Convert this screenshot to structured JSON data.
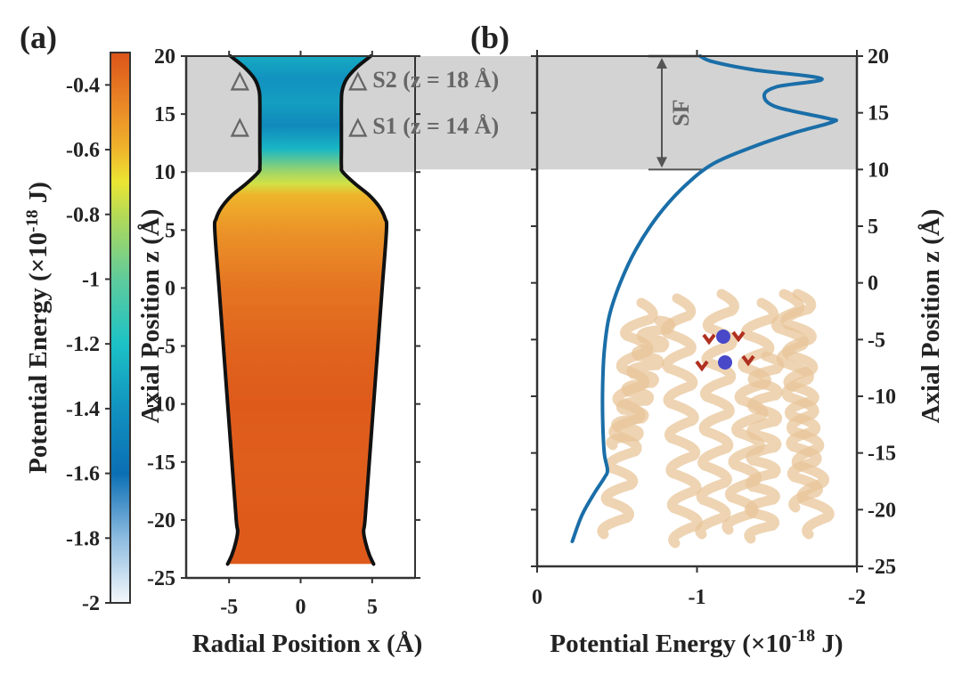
{
  "chart_data": [
    {
      "id": "a",
      "type": "heatmap",
      "panel_label": "(a)",
      "title": "",
      "xlabel": "Radial Position x (Å)",
      "ylabel": "Axial Position z (Å)",
      "xlim": [
        -8,
        8
      ],
      "ylim": [
        -25,
        20
      ],
      "xticks": [
        -5,
        0,
        5
      ],
      "xtick_labels": [
        "-5",
        "0",
        "5"
      ],
      "yticks": [
        20,
        15,
        10,
        5,
        0,
        -5,
        -10,
        -15,
        -20,
        -25
      ],
      "ytick_labels": [
        "20",
        "15",
        "10",
        "5",
        "0",
        "-5",
        "-10",
        "-15",
        "-20",
        "-25"
      ],
      "grid": false,
      "pore_profile": {
        "z": [
          20,
          19,
          18,
          17,
          16,
          14,
          12,
          10.5,
          10,
          9,
          8,
          7,
          6,
          5,
          0,
          -5,
          -10,
          -15,
          -20,
          -21,
          -22,
          -23,
          -23.8
        ],
        "radius": [
          4.9,
          3.9,
          3.2,
          2.9,
          2.85,
          2.85,
          2.85,
          2.85,
          2.95,
          3.8,
          4.8,
          5.5,
          5.9,
          6.0,
          5.7,
          5.4,
          5.1,
          4.8,
          4.5,
          4.4,
          4.55,
          4.8,
          5.1
        ]
      },
      "energy_along_axis": {
        "z": [
          20,
          18,
          16,
          14,
          12,
          10,
          9,
          8,
          5,
          0,
          -5,
          -10,
          -15,
          -20,
          -23.8
        ],
        "value": [
          -1.3,
          -1.4,
          -1.35,
          -1.45,
          -1.25,
          -0.85,
          -0.75,
          -0.6,
          -0.5,
          -0.4,
          -0.35,
          -0.32,
          -0.33,
          -0.32,
          -0.32
        ]
      },
      "colorbar": {
        "label": "Potential Energy (×10-18 J)",
        "label_base": "Potential Energy (×10",
        "label_exp": "-18",
        "label_tail": " J)",
        "range": [
          -2,
          -0.3
        ],
        "ticks": [
          -0.4,
          -0.6,
          -0.8,
          -1,
          -1.2,
          -1.4,
          -1.6,
          -1.8,
          -2
        ],
        "tick_labels": [
          "-0.4",
          "-0.6",
          "-0.8",
          "-1",
          "-1.2",
          "-1.4",
          "-1.6",
          "-1.8",
          "-2"
        ],
        "colormap": [
          {
            "v": -2.0,
            "c": "#f4f8fb"
          },
          {
            "v": -1.8,
            "c": "#8dbbe0"
          },
          {
            "v": -1.6,
            "c": "#0b6fb4"
          },
          {
            "v": -1.4,
            "c": "#1192bf"
          },
          {
            "v": -1.2,
            "c": "#1cc2c6"
          },
          {
            "v": -1.0,
            "c": "#5fcb9c"
          },
          {
            "v": -0.8,
            "c": "#b5da55"
          },
          {
            "v": -0.7,
            "c": "#ece633"
          },
          {
            "v": -0.6,
            "c": "#efb42b"
          },
          {
            "v": -0.45,
            "c": "#e98426"
          },
          {
            "v": -0.3,
            "c": "#dc5419"
          }
        ]
      },
      "shaded_region": {
        "z_range": [
          10,
          20
        ],
        "color": "#d3d3d3"
      },
      "annotations": [
        {
          "text": "△",
          "x": -4,
          "z": 18
        },
        {
          "text": "△",
          "x": -4,
          "z": 14
        },
        {
          "text": "△ S2 (z = 18 Å)",
          "x": 4,
          "z": 18
        },
        {
          "text": "△ S1 (z = 14 Å)",
          "x": 4,
          "z": 14
        }
      ]
    },
    {
      "id": "b",
      "type": "line",
      "panel_label": "(b)",
      "title": "",
      "xlabel": "Potential Energy (×10-18 J)",
      "xlabel_base": "Potential Energy (×10",
      "xlabel_exp": "-18",
      "xlabel_tail": " J)",
      "ylabel": "Axial Position z (Å)",
      "ylabel_position": "right",
      "xlim": [
        0,
        -2
      ],
      "ylim": [
        -25,
        20
      ],
      "xticks": [
        0,
        -1,
        -2
      ],
      "xtick_labels": [
        "0",
        "-1",
        "-2"
      ],
      "yticks": [
        20,
        15,
        10,
        5,
        0,
        -5,
        -10,
        -15,
        -20,
        -25
      ],
      "ytick_labels": [
        "20",
        "15",
        "10",
        "5",
        "0",
        "-5",
        "-10",
        "-15",
        "-20",
        "-25"
      ],
      "grid": false,
      "series": [
        {
          "name": "potential-energy-profile",
          "color": "#1a6ea8",
          "x": [
            -0.22,
            -0.28,
            -0.36,
            -0.42,
            -0.44,
            -0.42,
            -0.41,
            -0.41,
            -0.42,
            -0.45,
            -0.52,
            -0.62,
            -0.76,
            -0.92,
            -1.1,
            -1.35,
            -1.6,
            -1.85,
            -1.82,
            -1.5,
            -1.42,
            -1.5,
            -1.78,
            -1.35,
            -1.1,
            -1.02
          ],
          "y": [
            -22.8,
            -20.5,
            -18.5,
            -17.2,
            -16.5,
            -15,
            -12,
            -9,
            -6,
            -3,
            0,
            3,
            6,
            8.5,
            10.5,
            12,
            13.2,
            14.2,
            14.5,
            15.5,
            16.5,
            17.3,
            18,
            18.8,
            19.5,
            20
          ]
        }
      ],
      "shaded_region": {
        "z_range": [
          10,
          20
        ],
        "color": "#d3d3d3"
      },
      "annotations": [
        {
          "text": "SF",
          "type": "double-arrow",
          "x": -0.78,
          "z_range": [
            10,
            20
          ]
        }
      ],
      "inset": {
        "description": "protein-ribbon-structure",
        "colors": {
          "ribbon": "#e8c59a",
          "ions": "#4848c8",
          "residues": "#b03020"
        }
      }
    }
  ]
}
